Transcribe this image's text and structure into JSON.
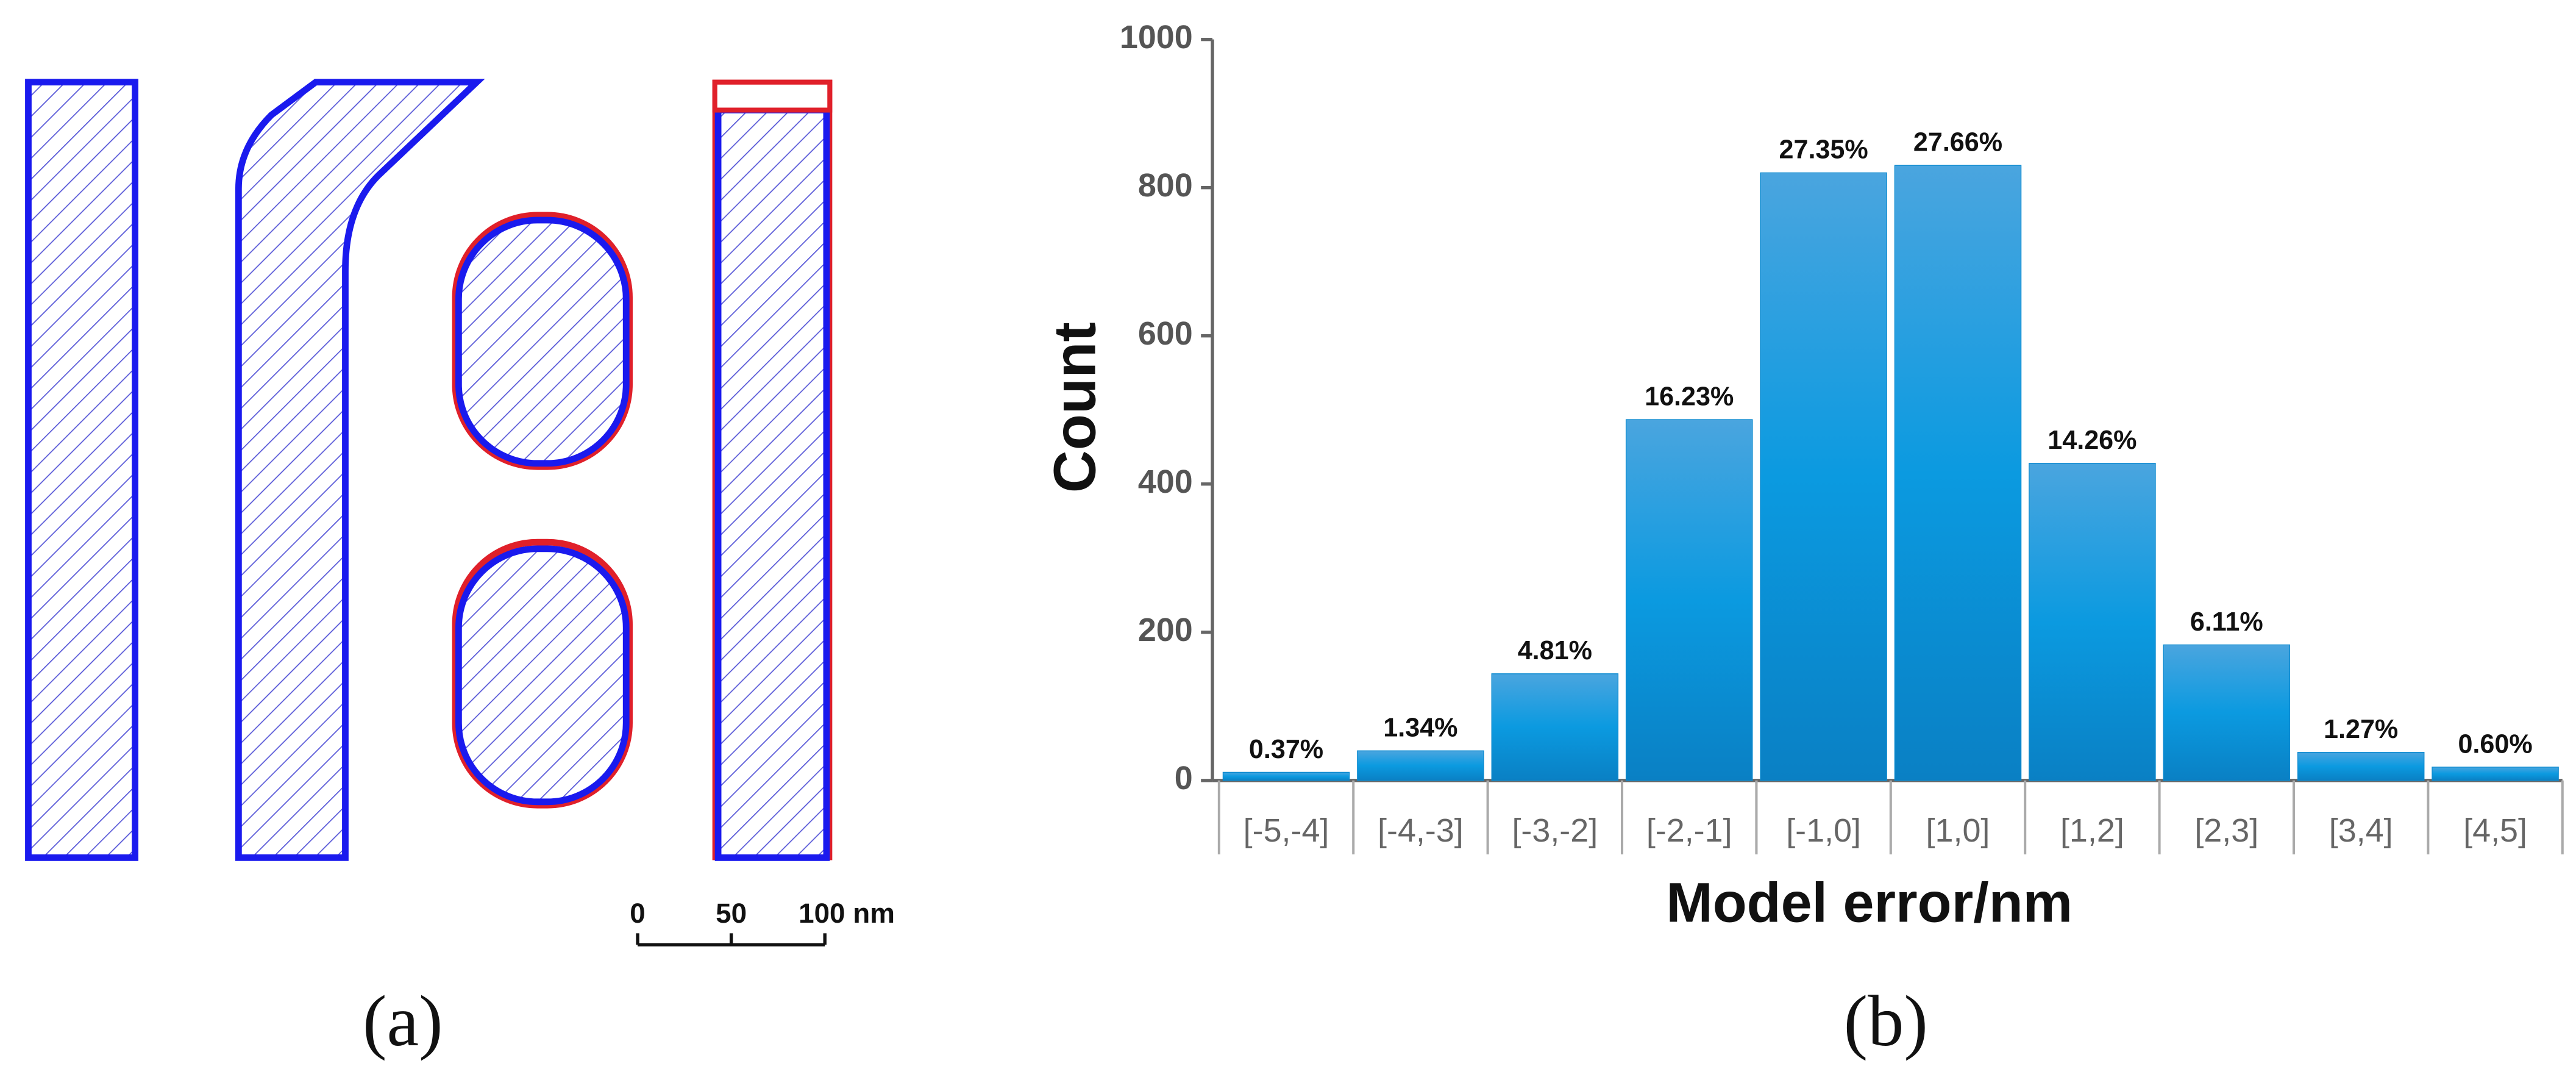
{
  "panel_a": {
    "label": "(a)",
    "scale_bar": [
      "0",
      "50",
      "100 nm"
    ]
  },
  "chart_data": {
    "type": "bar",
    "panel_label": "(b)",
    "x_label": "Model error/nm",
    "y_label": "Count",
    "categories": [
      "[-5,-4]",
      "[-4,-3]",
      "[-3,-2]",
      "[-2,-1]",
      "[-1,0]",
      "[1,0]",
      "[1,2]",
      "[2,3]",
      "[3,4]",
      "[4,5]"
    ],
    "values": [
      11,
      40,
      144,
      487,
      820,
      830,
      428,
      183,
      38,
      18
    ],
    "percent_labels": [
      "0.37%",
      "1.34%",
      "4.81%",
      "16.23%",
      "27.35%",
      "27.66%",
      "14.26%",
      "6.11%",
      "1.27%",
      "0.60%"
    ],
    "color": "#0b8ad0",
    "ylim": [
      0,
      1000
    ],
    "yticks": [
      0,
      200,
      400,
      600,
      800,
      1000
    ]
  }
}
